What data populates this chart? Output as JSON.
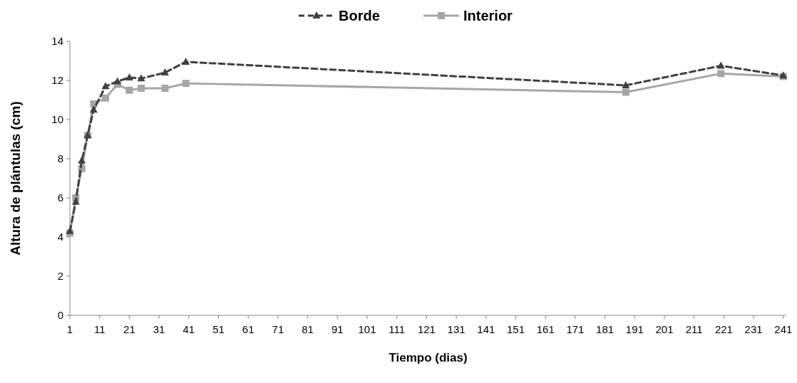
{
  "chart_data": {
    "type": "line",
    "xlabel": "Tiempo (dias)",
    "ylabel": "Altura de plántulas (cm)",
    "xlim": [
      1,
      242
    ],
    "xticks": [
      1,
      11,
      21,
      31,
      41,
      51,
      61,
      71,
      81,
      91,
      101,
      111,
      121,
      131,
      141,
      151,
      161,
      171,
      181,
      191,
      201,
      211,
      221,
      231,
      241
    ],
    "ylim": [
      0,
      14
    ],
    "yticks": [
      0,
      2,
      4,
      6,
      8,
      10,
      12,
      14
    ],
    "legend": "top",
    "grid": false,
    "series": [
      {
        "name": "Borde",
        "color": "#404040",
        "line_style": "dashed",
        "marker": "triangle",
        "x": [
          1,
          3,
          5,
          7,
          9,
          13,
          17,
          21,
          25,
          33,
          40,
          188,
          220,
          241
        ],
        "values": [
          4.3,
          5.8,
          7.9,
          9.2,
          10.5,
          11.7,
          11.95,
          12.15,
          12.1,
          12.4,
          12.95,
          11.75,
          12.75,
          12.25
        ]
      },
      {
        "name": "Interior",
        "color": "#a6a6a6",
        "line_style": "solid",
        "marker": "square",
        "x": [
          1,
          3,
          5,
          7,
          9,
          13,
          17,
          21,
          25,
          33,
          40,
          188,
          220,
          241
        ],
        "values": [
          4.2,
          6.0,
          7.5,
          9.2,
          10.8,
          11.1,
          11.8,
          11.5,
          11.6,
          11.6,
          11.85,
          11.4,
          12.35,
          12.2
        ]
      }
    ]
  }
}
